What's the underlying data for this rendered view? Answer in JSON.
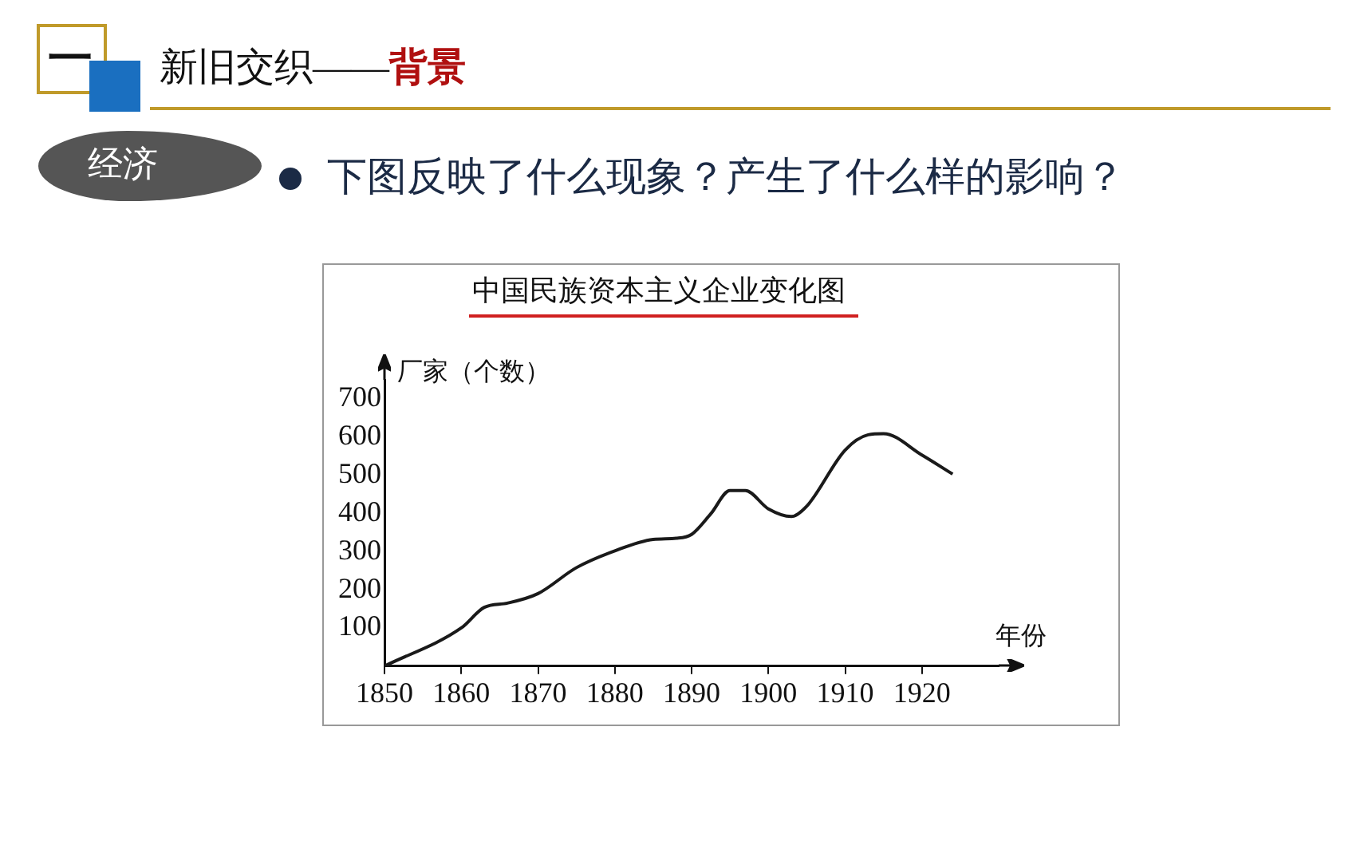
{
  "chart_data": {
    "type": "line",
    "title": "中国民族资本主义企业变化图",
    "ylabel": "厂家（个数）",
    "xlabel": "年份",
    "annotations": [
      "一",
      "新旧交织——",
      "背景",
      "经济",
      "下图反映了什么现象？产生了什么样的影响？"
    ],
    "x": [
      1850,
      1860,
      1863,
      1866,
      1870,
      1875,
      1880,
      1885,
      1888,
      1890,
      1892.5,
      1895,
      1897,
      1900,
      1903,
      1905,
      1910,
      1913,
      1915,
      1920,
      1924
    ],
    "series": [
      {
        "color": "#1a1a1a",
        "values": [
          0,
          100,
          154,
          165,
          190,
          258,
          302,
          332,
          335,
          345,
          399,
          460,
          460,
          412,
          392,
          419,
          566,
          606,
          609,
          553,
          503
        ]
      }
    ],
    "xlim": [
      1850,
      1930
    ],
    "xticks": [
      1850,
      1860,
      1870,
      1880,
      1890,
      1900,
      1910,
      1920
    ],
    "ylim": [
      0,
      750
    ],
    "yticks": [
      100,
      200,
      300,
      400,
      500,
      600,
      700
    ],
    "grid": false,
    "legend": false,
    "marker": "none",
    "line_style": "solid"
  }
}
